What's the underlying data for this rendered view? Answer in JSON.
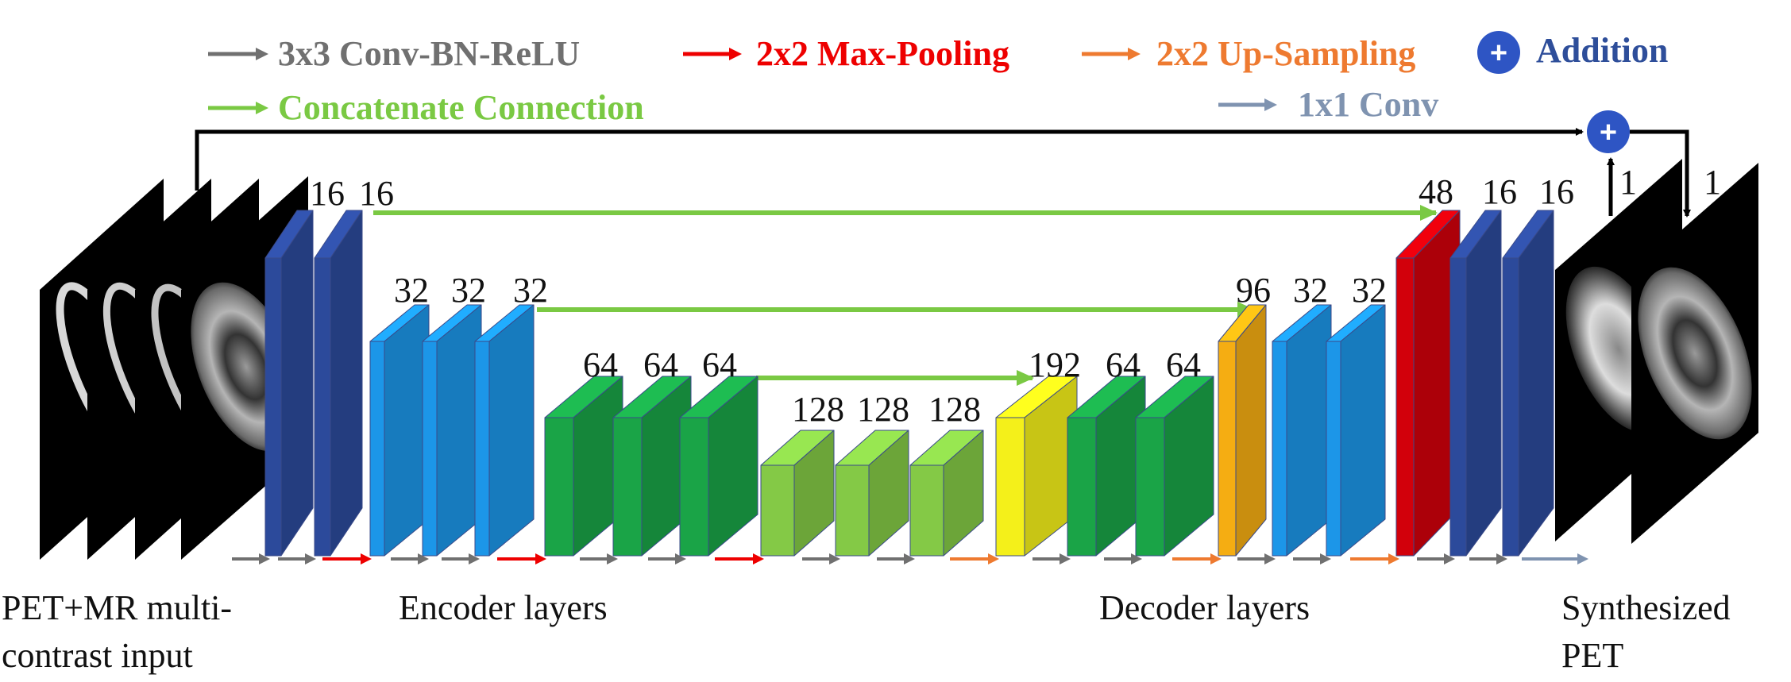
{
  "legend": {
    "conv": {
      "label": "3x3 Conv-BN-ReLU",
      "color": "#707070"
    },
    "pool": {
      "label": "2x2 Max-Pooling",
      "color": "#ee0000"
    },
    "upsample": {
      "label": "2x2 Up-Sampling",
      "color": "#ee7a30"
    },
    "addition": {
      "label": "Addition",
      "symbol": "+",
      "color": "#2e4e9a"
    },
    "concat": {
      "label": "Concatenate  Connection",
      "color": "#7ac943"
    },
    "conv1x1": {
      "label": "1x1 Conv",
      "color": "#7f93b0"
    }
  },
  "colors": {
    "navy": "#2c4a9b",
    "blue": "#1c96e8",
    "green": "#1aa447",
    "lightgreen": "#84c946",
    "yellow": "#f4f01a",
    "orange": "#f5ad12",
    "red": "#d2000b"
  },
  "channels": {
    "enc1": [
      "16",
      "16"
    ],
    "enc2": [
      "32",
      "32",
      "32"
    ],
    "enc3": [
      "64",
      "64",
      "64"
    ],
    "bottleneck": [
      "128",
      "128",
      "128"
    ],
    "dec3": [
      "192",
      "64",
      "64"
    ],
    "dec2": [
      "96",
      "32",
      "32"
    ],
    "dec1": [
      "48",
      "16",
      "16"
    ],
    "output": [
      "1",
      "1"
    ]
  },
  "captions": {
    "input_line1": "PET+MR multi-",
    "input_line2": "contrast input",
    "encoder": "Encoder layers",
    "decoder": "Decoder layers",
    "output_line1": "Synthesized",
    "output_line2": "PET"
  },
  "icons": {
    "mri_slice": "brain-mri-slice-icon",
    "pet_slice": "brain-pet-slice-icon",
    "add_node": "addition-circle-icon"
  }
}
